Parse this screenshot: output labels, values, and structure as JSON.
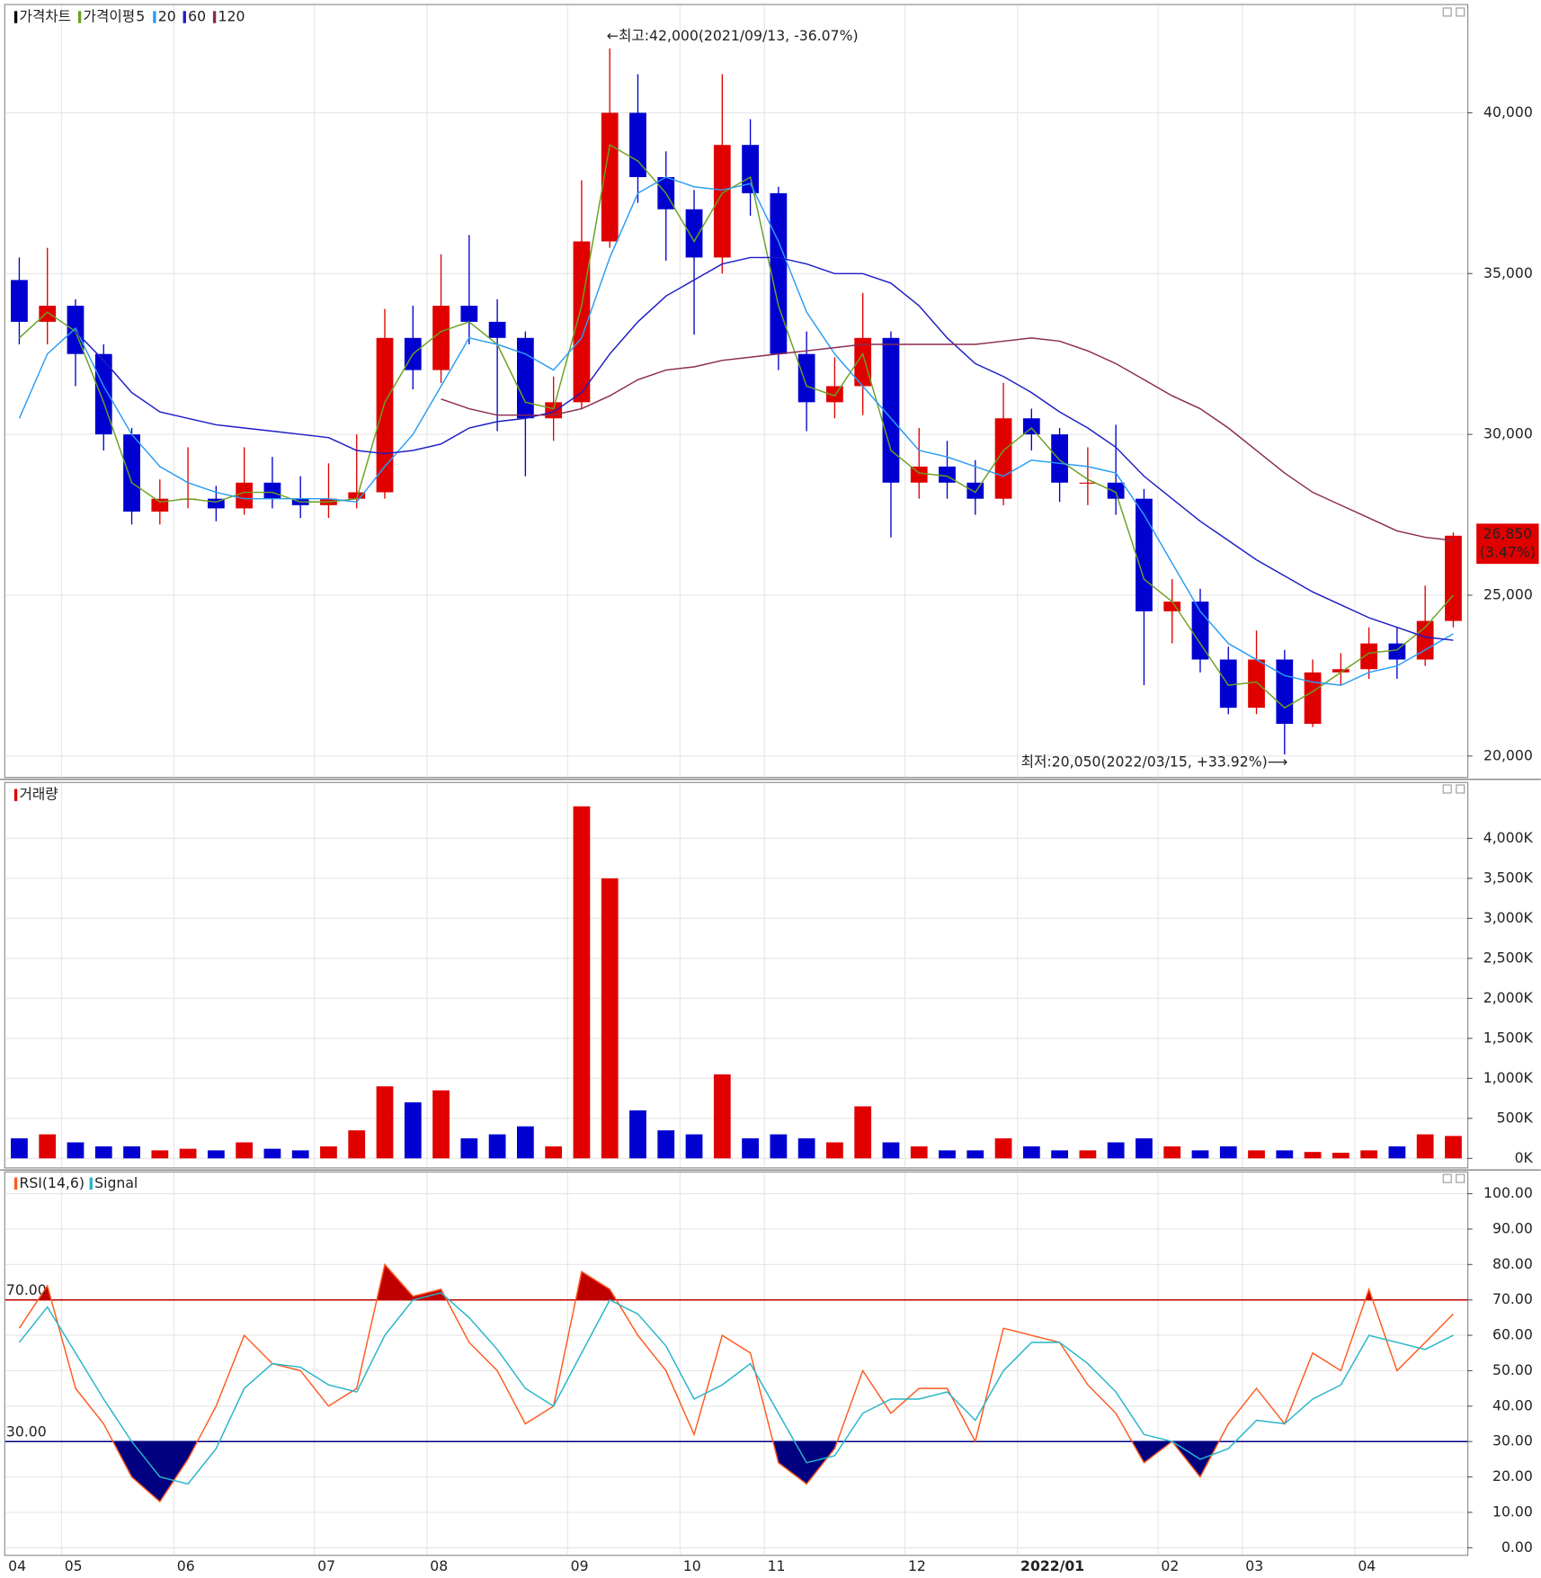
{
  "chart_data": [
    {
      "type": "candlestick",
      "title": "가격차트",
      "ma_label": "가격이평",
      "categories": [
        "04",
        null,
        "05",
        null,
        null,
        null,
        "06",
        null,
        null,
        null,
        null,
        "07",
        null,
        null,
        null,
        "08",
        null,
        null,
        null,
        null,
        "09",
        null,
        null,
        null,
        "10",
        null,
        null,
        "11",
        null,
        null,
        null,
        null,
        "12",
        null,
        null,
        null,
        "2022/01",
        null,
        null,
        null,
        null,
        "02",
        null,
        null,
        "03",
        null,
        null,
        null,
        "04",
        null,
        null,
        null
      ],
      "up_color": "#e00000",
      "down_color": "#0000d0",
      "open": [
        34800,
        33500,
        34000,
        32500,
        30000,
        27600,
        28000,
        28000,
        27700,
        28500,
        28000,
        27800,
        28000,
        28200,
        33000,
        32000,
        34000,
        33500,
        33000,
        30500,
        31000,
        36000,
        40000,
        38000,
        37000,
        35500,
        39000,
        37500,
        32500,
        31000,
        31500,
        33000,
        28500,
        29000,
        28500,
        28000,
        30500,
        30000,
        28500,
        28500,
        28000,
        24500,
        24800,
        23000,
        21500,
        23000,
        21000,
        22600,
        22700,
        23500,
        23000,
        24200
      ],
      "high": [
        35500,
        35800,
        34200,
        32800,
        30200,
        28600,
        29600,
        28400,
        29600,
        29300,
        28700,
        29100,
        30000,
        33900,
        34000,
        35600,
        36200,
        34200,
        33200,
        31800,
        37900,
        42000,
        41200,
        38800,
        37600,
        41200,
        39800,
        37700,
        33200,
        32400,
        34400,
        33200,
        30200,
        29800,
        29200,
        31600,
        30800,
        30200,
        29600,
        30300,
        28300,
        25500,
        25200,
        23400,
        23900,
        23300,
        23000,
        23200,
        24000,
        24000,
        25300,
        26950
      ],
      "low": [
        32800,
        32800,
        31500,
        29500,
        27200,
        27200,
        27700,
        27300,
        27500,
        27700,
        27400,
        27400,
        27700,
        28000,
        31400,
        31600,
        32800,
        30100,
        28700,
        29800,
        30800,
        35800,
        37200,
        35400,
        33100,
        35000,
        36800,
        32000,
        30100,
        30500,
        30600,
        26800,
        28000,
        28000,
        27500,
        27800,
        29500,
        27900,
        27800,
        27500,
        22200,
        23500,
        22600,
        21300,
        21300,
        20050,
        20900,
        22200,
        22400,
        22400,
        22800,
        24000
      ],
      "close": [
        33500,
        34000,
        32500,
        30000,
        27600,
        28000,
        28000,
        27700,
        28500,
        28000,
        27800,
        28000,
        28200,
        33000,
        32000,
        34000,
        33500,
        33000,
        30500,
        31000,
        36000,
        40000,
        38000,
        37000,
        35500,
        39000,
        37500,
        32500,
        31000,
        31500,
        33000,
        28500,
        29000,
        28500,
        28000,
        30500,
        30000,
        28500,
        28500,
        28000,
        24500,
        24800,
        23000,
        21500,
        23000,
        21000,
        22600,
        22700,
        23500,
        23000,
        24200,
        26850
      ],
      "series": [
        {
          "name": "5",
          "color": "#6aa121",
          "values": [
            33000,
            33800,
            33200,
            31000,
            28500,
            27900,
            28000,
            27900,
            28200,
            28200,
            27900,
            27900,
            28000,
            31000,
            32500,
            33200,
            33500,
            32800,
            31000,
            30800,
            34000,
            39000,
            38500,
            37500,
            36000,
            37500,
            38000,
            34000,
            31500,
            31200,
            32500,
            29500,
            28800,
            28700,
            28200,
            29500,
            30200,
            29200,
            28600,
            28200,
            25500,
            24800,
            23500,
            22200,
            22300,
            21500,
            22000,
            22600,
            23200,
            23300,
            24000,
            25000
          ]
        },
        {
          "name": "20",
          "color": "#2a9df4",
          "values": [
            30500,
            32500,
            33300,
            31500,
            30000,
            29000,
            28500,
            28200,
            28000,
            28000,
            28000,
            28000,
            27900,
            29000,
            30000,
            31500,
            33000,
            32800,
            32500,
            32000,
            33000,
            35500,
            37500,
            38000,
            37700,
            37600,
            37800,
            36000,
            33800,
            32500,
            31500,
            30500,
            29500,
            29300,
            29000,
            28700,
            29200,
            29100,
            29000,
            28800,
            27500,
            26000,
            24500,
            23500,
            23000,
            22500,
            22300,
            22200,
            22600,
            22800,
            23300,
            23800
          ]
        },
        {
          "name": "60",
          "color": "#1c1cc8",
          "values": [
            null,
            null,
            33200,
            32300,
            31300,
            30700,
            30500,
            30300,
            30200,
            30100,
            30000,
            29900,
            29500,
            29400,
            29500,
            29700,
            30200,
            30400,
            30500,
            30700,
            31300,
            32500,
            33500,
            34300,
            34800,
            35300,
            35500,
            35500,
            35300,
            35000,
            35000,
            34700,
            34000,
            33000,
            32200,
            31800,
            31300,
            30700,
            30200,
            29600,
            28700,
            28000,
            27300,
            26700,
            26100,
            25600,
            25100,
            24700,
            24300,
            24000,
            23700,
            23600
          ]
        },
        {
          "name": "120",
          "color": "#8b2a52",
          "values": [
            null,
            null,
            null,
            null,
            null,
            null,
            null,
            null,
            null,
            null,
            null,
            null,
            null,
            null,
            null,
            31100,
            30800,
            30600,
            30600,
            30600,
            30800,
            31200,
            31700,
            32000,
            32100,
            32300,
            32400,
            32500,
            32600,
            32700,
            32800,
            32800,
            32800,
            32800,
            32800,
            32900,
            33000,
            32900,
            32600,
            32200,
            31700,
            31200,
            30800,
            30200,
            29500,
            28800,
            28200,
            27800,
            27400,
            27000,
            26800,
            26700
          ]
        }
      ],
      "ylim": [
        19350,
        43350
      ],
      "yticks": [
        {
          "value": 20000,
          "label": "20,000"
        },
        {
          "value": 25000,
          "label": "25,000"
        },
        {
          "value": 30000,
          "label": "30,000"
        },
        {
          "value": 35000,
          "label": "35,000"
        },
        {
          "value": 40000,
          "label": "40,000"
        }
      ],
      "grid": true,
      "annotations": [
        {
          "text": "←최고:42,000(2021/09/13, -36.07%)",
          "color": "#e00000"
        },
        {
          "text": "최저:20,050(2022/03/15, +33.92%)⟶",
          "color": "#0000d0"
        }
      ],
      "last_price": {
        "text": "26,850",
        "change": "(3.47%)",
        "value": 26850,
        "color": "#e00000"
      }
    },
    {
      "type": "bar",
      "series": [
        {
          "name": "거래량",
          "color": "#e00000",
          "values": [
            250,
            300,
            200,
            150,
            150,
            100,
            120,
            100,
            200,
            120,
            100,
            150,
            350,
            900,
            700,
            850,
            250,
            300,
            400,
            150,
            4400,
            3500,
            600,
            350,
            300,
            1050,
            250,
            300,
            250,
            200,
            650,
            200,
            150,
            100,
            100,
            250,
            150,
            100,
            100,
            200,
            250,
            150,
            100,
            150,
            100,
            100,
            80,
            70,
            100,
            150,
            300,
            280
          ]
        }
      ],
      "ylim": [
        -113,
        4692
      ],
      "yticks": [
        {
          "value": 0,
          "label": "0K"
        },
        {
          "value": 500,
          "label": "500K"
        },
        {
          "value": 1000,
          "label": "1,000K"
        },
        {
          "value": 1500,
          "label": "1,500K"
        },
        {
          "value": 2000,
          "label": "2,000K"
        },
        {
          "value": 2500,
          "label": "2,500K"
        },
        {
          "value": 3000,
          "label": "3,000K"
        },
        {
          "value": 3500,
          "label": "3,500K"
        },
        {
          "value": 4000,
          "label": "4,000K"
        }
      ],
      "grid": true
    },
    {
      "type": "line",
      "series": [
        {
          "name": "RSI(14,6)",
          "color": "#ff5a1f",
          "values": [
            62,
            74,
            45,
            35,
            20,
            13,
            25,
            40,
            60,
            52,
            50,
            40,
            45,
            80,
            71,
            73,
            58,
            50,
            35,
            40,
            78,
            73,
            60,
            50,
            32,
            60,
            55,
            24,
            18,
            28,
            50,
            38,
            45,
            45,
            30,
            62,
            60,
            58,
            46,
            38,
            24,
            30,
            20,
            35,
            45,
            35,
            55,
            50,
            73,
            50,
            58,
            66
          ]
        },
        {
          "name": "Signal",
          "color": "#25b5c8",
          "values": [
            58,
            68,
            55,
            42,
            30,
            20,
            18,
            28,
            45,
            52,
            51,
            46,
            44,
            60,
            70,
            72,
            65,
            56,
            45,
            40,
            55,
            70,
            66,
            57,
            42,
            46,
            52,
            38,
            24,
            26,
            38,
            42,
            42,
            44,
            36,
            50,
            58,
            58,
            52,
            44,
            32,
            30,
            25,
            28,
            36,
            35,
            42,
            46,
            60,
            58,
            56,
            60
          ]
        }
      ],
      "levels": [
        {
          "value": 70,
          "label": "70.00",
          "color": "#c00000"
        },
        {
          "value": 30,
          "label": "30.00",
          "color": "#000080"
        }
      ],
      "ylim": [
        -2,
        106
      ],
      "yticks": [
        {
          "value": 0,
          "label": "0.00"
        },
        {
          "value": 10,
          "label": "10.00"
        },
        {
          "value": 20,
          "label": "20.00"
        },
        {
          "value": 30,
          "label": "30.00"
        },
        {
          "value": 40,
          "label": "40.00"
        },
        {
          "value": 50,
          "label": "50.00"
        },
        {
          "value": 60,
          "label": "60.00"
        },
        {
          "value": 70,
          "label": "70.00"
        },
        {
          "value": 80,
          "label": "80.00"
        },
        {
          "value": 90,
          "label": "90.00"
        },
        {
          "value": 100,
          "label": "100.00"
        }
      ],
      "grid": true
    }
  ]
}
